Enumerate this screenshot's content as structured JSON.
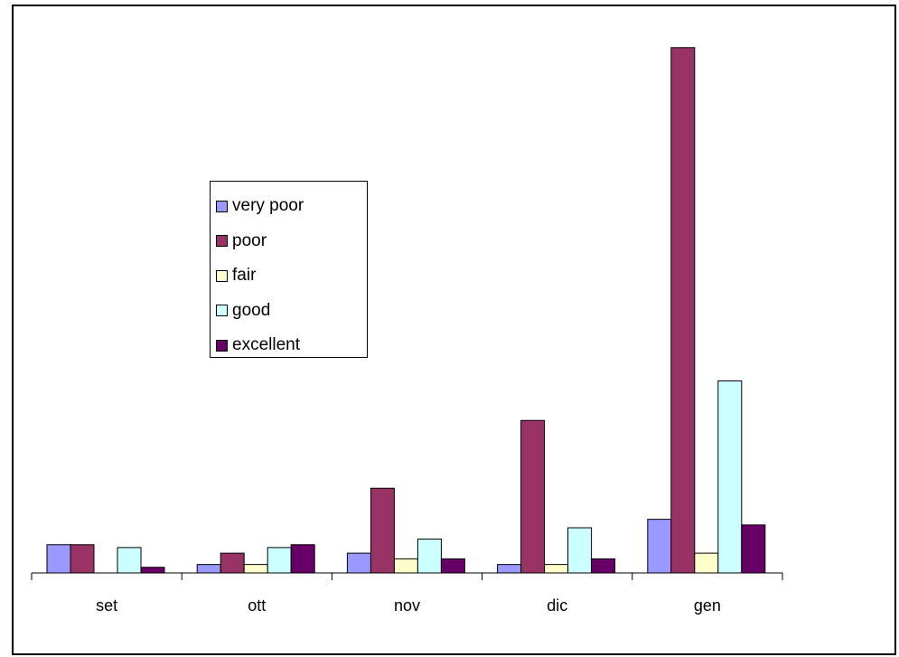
{
  "chart_data": {
    "type": "bar",
    "title": "",
    "xlabel": "",
    "ylabel": "",
    "categories": [
      "set",
      "ott",
      "nov",
      "dic",
      "gen"
    ],
    "series": [
      {
        "name": "very poor",
        "color": "#9999FF",
        "values": [
          5,
          1.5,
          3.5,
          1.5,
          9.5
        ]
      },
      {
        "name": "poor",
        "color": "#993366",
        "values": [
          5,
          3.5,
          15,
          27,
          93
        ]
      },
      {
        "name": "fair",
        "color": "#FFFFCC",
        "values": [
          0,
          1.5,
          2.5,
          1.5,
          3.5
        ]
      },
      {
        "name": "good",
        "color": "#CCFFFF",
        "values": [
          4.5,
          4.5,
          6,
          8,
          34
        ]
      },
      {
        "name": "excellent",
        "color": "#660066",
        "values": [
          1,
          5,
          2.5,
          2.5,
          8.5
        ]
      }
    ],
    "ylim": [
      0,
      100
    ],
    "grid": false,
    "legend_position": "left-center"
  }
}
